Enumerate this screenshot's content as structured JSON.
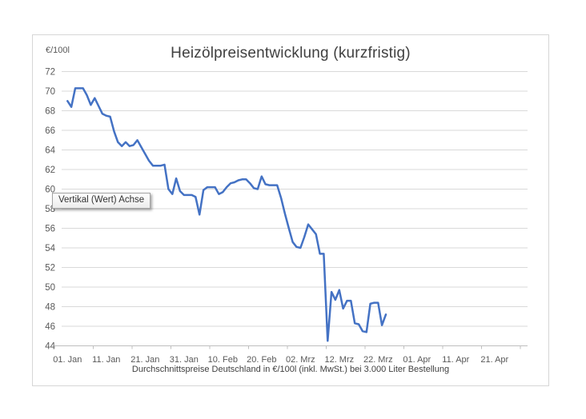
{
  "window": {
    "background": "#ffffff"
  },
  "tooltip": {
    "text": "Vertikal (Wert) Achse"
  },
  "chart_data": {
    "type": "line",
    "title": "Heizölpreisentwicklung (kurzfristig)",
    "y_axis_unit_label": "€/100l",
    "xlabel": "Durchschnittspreise Deutschland in €/100l (inkl. MwSt.) bei 3.000 Liter Bestellung",
    "ylabel": "",
    "ylim": [
      44,
      72
    ],
    "y_tick_labels": [
      "72",
      "70",
      "68",
      "66",
      "64",
      "62",
      "60",
      "58",
      "56",
      "54",
      "52",
      "50",
      "48",
      "46",
      "44"
    ],
    "x_tick_labels": [
      "01. Jan",
      "11. Jan",
      "21. Jan",
      "31. Jan",
      "10. Feb",
      "20. Feb",
      "02. Mrz",
      "12. Mrz",
      "22. Mrz",
      "01. Apr",
      "11. Apr",
      "21. Apr"
    ],
    "x_tick_interval_days": 10,
    "grid": "horizontal",
    "legend": "none",
    "line_color": "#4472C4",
    "grid_color": "#d9d9d9",
    "axis_color": "#bfbfbf",
    "tick_text_color": "#595959",
    "title_color": "#404040",
    "series": [
      {
        "start_label": "01. Jan",
        "frequency": "daily",
        "values": [
          69.0,
          68.4,
          70.3,
          70.3,
          70.3,
          69.6,
          68.6,
          69.3,
          68.5,
          67.7,
          67.5,
          67.4,
          65.9,
          64.8,
          64.4,
          64.8,
          64.4,
          64.5,
          65.0,
          64.3,
          63.6,
          62.9,
          62.4,
          62.4,
          62.4,
          62.5,
          60.0,
          59.5,
          61.1,
          59.8,
          59.4,
          59.4,
          59.4,
          59.2,
          57.4,
          59.9,
          60.2,
          60.2,
          60.2,
          59.5,
          59.7,
          60.2,
          60.6,
          60.7,
          60.9,
          61.0,
          61.0,
          60.6,
          60.1,
          60.0,
          61.3,
          60.5,
          60.4,
          60.4,
          60.4,
          59.1,
          57.5,
          56.0,
          54.6,
          54.1,
          54.0,
          55.1,
          56.4,
          55.9,
          55.4,
          53.4,
          53.4,
          44.5,
          49.5,
          48.7,
          49.7,
          47.8,
          48.6,
          48.6,
          46.3,
          46.2,
          45.5,
          45.4,
          48.3,
          48.4,
          48.4,
          46.1,
          47.2
        ]
      }
    ]
  }
}
